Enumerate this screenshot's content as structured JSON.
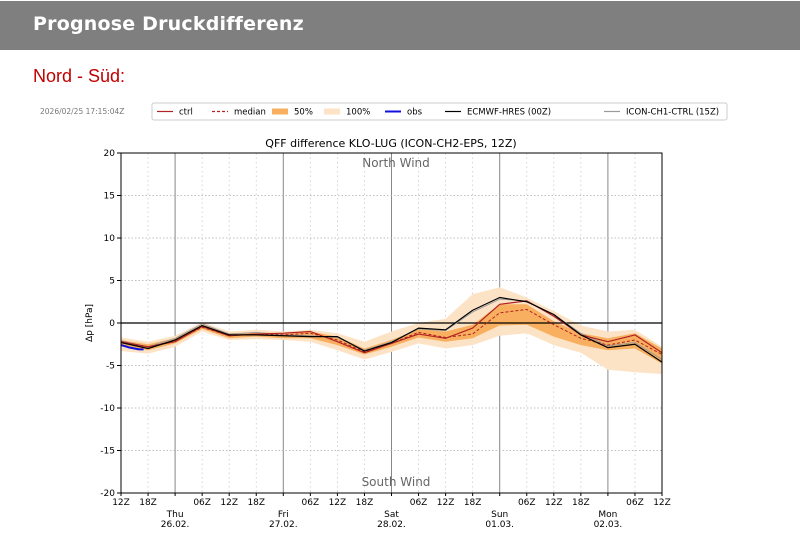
{
  "header": {
    "title": "Prognose Druckdifferenz"
  },
  "section": {
    "title": "Nord - Süd:"
  },
  "timestamp": "2026/02/25 17:15:04Z",
  "chart_data": {
    "type": "line",
    "title": "QFF difference KLO-LUG (ICON-CH2-EPS, 12Z)",
    "ylabel": "Δp [hPa]",
    "xlabel": "",
    "ylim": [
      -20,
      20
    ],
    "yticks": [
      -20,
      -15,
      -10,
      -5,
      0,
      5,
      10,
      15,
      20
    ],
    "x_unit": "hours after 25.02. 12Z",
    "xlim": [
      0,
      120
    ],
    "grid": true,
    "legend_position": "top, outside",
    "annotations": [
      {
        "text": "North Wind",
        "position": "top"
      },
      {
        "text": "South Wind",
        "position": "bottom"
      }
    ],
    "xtick_hour_labels": [
      "12Z",
      "18Z",
      "",
      "06Z",
      "12Z",
      "18Z",
      "",
      "06Z",
      "12Z",
      "18Z",
      "",
      "06Z",
      "12Z",
      "18Z",
      "",
      "06Z",
      "12Z",
      "18Z",
      "",
      "06Z",
      "12Z"
    ],
    "day_labels": [
      {
        "hour": 12,
        "day": "Thu",
        "date": "26.02."
      },
      {
        "hour": 36,
        "day": "Fri",
        "date": "27.02."
      },
      {
        "hour": 60,
        "day": "Sat",
        "date": "28.02."
      },
      {
        "hour": 84,
        "day": "Sun",
        "date": "01.03."
      },
      {
        "hour": 108,
        "day": "Mon",
        "date": "02.03."
      }
    ],
    "x": [
      0,
      6,
      12,
      18,
      24,
      30,
      36,
      42,
      48,
      54,
      60,
      66,
      72,
      78,
      84,
      90,
      96,
      102,
      108,
      114,
      120
    ],
    "legend": [
      {
        "name": "ctrl",
        "kind": "line",
        "color": "#b22222"
      },
      {
        "name": "median",
        "kind": "dashed",
        "color": "#b22222"
      },
      {
        "name": "50%",
        "kind": "fill",
        "color": "#f8b060"
      },
      {
        "name": "100%",
        "kind": "fill",
        "color": "#fde3c6"
      },
      {
        "name": "obs",
        "kind": "line",
        "color": "#1010e0"
      },
      {
        "name": "ECMWF-HRES (00Z)",
        "kind": "line",
        "color": "#000000"
      },
      {
        "name": "ICON-CH1-CTRL (15Z)",
        "kind": "line",
        "color": "#9a9a9a"
      }
    ],
    "bands": {
      "100%": {
        "low": [
          -3.3,
          -3.6,
          -2.8,
          -1.0,
          -2.0,
          -1.9,
          -2.0,
          -2.2,
          -3.2,
          -4.3,
          -3.4,
          -2.4,
          -3.0,
          -2.6,
          -1.5,
          -1.2,
          -2.6,
          -3.5,
          -5.5,
          -5.8,
          -6.0
        ],
        "high": [
          -1.7,
          -2.2,
          -1.5,
          0.1,
          -1.0,
          -0.8,
          -1.0,
          -0.8,
          -1.2,
          -2.2,
          -1.0,
          0.0,
          0.5,
          3.4,
          4.2,
          3.0,
          1.4,
          -0.3,
          -1.0,
          -0.8,
          -2.8
        ]
      },
      "50%": {
        "low": [
          -2.6,
          -3.2,
          -2.4,
          -0.7,
          -1.8,
          -1.6,
          -1.8,
          -1.8,
          -2.6,
          -3.7,
          -2.8,
          -1.7,
          -2.2,
          -1.8,
          -0.3,
          -0.2,
          -1.6,
          -2.6,
          -3.2,
          -3.0,
          -4.8
        ],
        "high": [
          -2.0,
          -2.5,
          -1.8,
          -0.2,
          -1.2,
          -1.1,
          -1.2,
          -1.0,
          -1.6,
          -3.0,
          -2.0,
          -0.7,
          -1.0,
          -0.2,
          2.2,
          2.2,
          0.2,
          -1.2,
          -1.8,
          -1.2,
          -3.0
        ]
      }
    },
    "series": [
      {
        "name": "ICON-CH1-CTRL (15Z)",
        "values": [
          -2.1,
          -2.8,
          -1.8,
          -0.1,
          -1.3,
          -1.1,
          -1.4,
          -1.5,
          -1.7,
          -3.2,
          -2.2,
          -0.7,
          -0.9,
          1.3,
          2.8,
          2.6,
          1.0,
          -1.2,
          -2.7,
          -2.3,
          -4.3
        ]
      },
      {
        "name": "ctrl",
        "values": [
          -2.2,
          -2.8,
          -2.2,
          -0.4,
          -1.5,
          -1.3,
          -1.2,
          -1.0,
          -2.2,
          -3.5,
          -2.4,
          -1.3,
          -1.8,
          -0.6,
          2.2,
          2.6,
          0.8,
          -1.4,
          -2.2,
          -1.4,
          -3.5
        ]
      },
      {
        "name": "median",
        "values": [
          -2.3,
          -2.8,
          -2.1,
          -0.5,
          -1.5,
          -1.3,
          -1.4,
          -1.2,
          -2.0,
          -3.4,
          -2.4,
          -1.1,
          -1.7,
          -1.3,
          1.2,
          1.6,
          -0.2,
          -1.8,
          -2.6,
          -2.0,
          -3.7
        ]
      },
      {
        "name": "ECMWF-HRES (00Z)",
        "values": [
          -2.3,
          -3.0,
          -2.0,
          -0.3,
          -1.4,
          -1.4,
          -1.5,
          -1.6,
          -1.6,
          -3.3,
          -2.3,
          -0.6,
          -0.8,
          1.5,
          3.0,
          2.5,
          1.0,
          -1.4,
          -2.9,
          -2.5,
          -4.6
        ]
      },
      {
        "name": "obs",
        "x": [
          0,
          2,
          4,
          5
        ],
        "values": [
          -2.6,
          -2.9,
          -3.1,
          -3.1
        ]
      }
    ]
  }
}
